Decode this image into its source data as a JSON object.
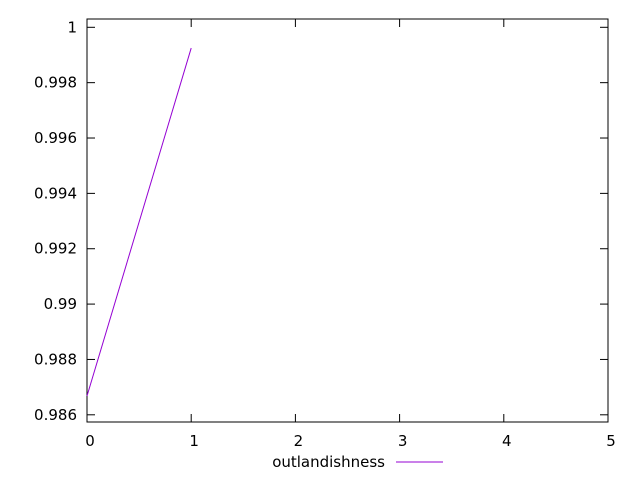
{
  "chart_data": {
    "type": "line",
    "title": "",
    "xlabel": "",
    "ylabel": "",
    "xlim": [
      0,
      5
    ],
    "ylim": [
      0.98574,
      1.0003
    ],
    "x_ticks": [
      0,
      1,
      2,
      3,
      4,
      5
    ],
    "x_tick_labels": [
      "0",
      "1",
      "2",
      "3",
      "4",
      "5"
    ],
    "y_ticks": [
      0.986,
      0.988,
      0.99,
      0.992,
      0.994,
      0.996,
      0.998,
      1
    ],
    "y_tick_labels": [
      "0.986",
      "0.988",
      "0.99",
      "0.992",
      "0.994",
      "0.996",
      "0.998",
      "1"
    ],
    "grid": false,
    "legend_position": "bottom-center",
    "series": [
      {
        "name": "outlandishness",
        "color": "#9400d3",
        "x": [
          0,
          1
        ],
        "y": [
          0.98668,
          0.99925
        ]
      }
    ]
  }
}
